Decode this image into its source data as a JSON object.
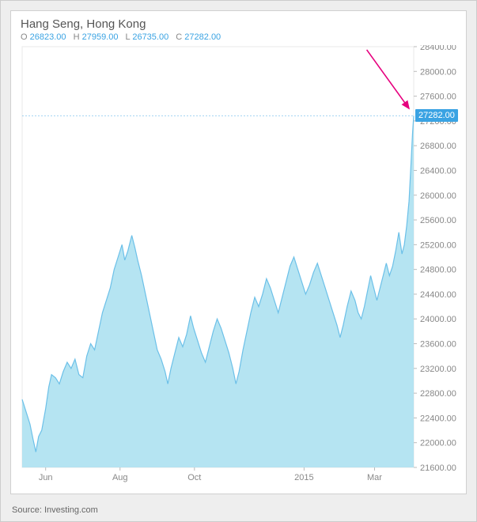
{
  "chart": {
    "type": "area",
    "title": "Hang Seng, Hong Kong",
    "ohlc": {
      "O_label": "O",
      "O_value": "26823.00",
      "O_color": "#3aa3e3",
      "H_label": "H",
      "H_value": "27959.00",
      "H_color": "#3aa3e3",
      "L_label": "L",
      "L_value": "26735.00",
      "L_color": "#3aa3e3",
      "C_label": "C",
      "C_value": "27282.00",
      "C_color": "#3aa3e3"
    },
    "y_axis": {
      "side": "right",
      "min": 21600,
      "max": 28400,
      "tick_step": 400,
      "ticks": [
        21600,
        22000,
        22400,
        22800,
        23200,
        23600,
        24000,
        24400,
        24800,
        25200,
        25600,
        26000,
        26400,
        26800,
        27200,
        27600,
        28000,
        28400
      ],
      "tick_labels": [
        "21600.00",
        "22000.00",
        "22400.00",
        "22800.00",
        "23200.00",
        "23600.00",
        "24000.00",
        "24400.00",
        "24800.00",
        "25200.00",
        "25600.00",
        "26000.00",
        "26400.00",
        "26800.00",
        "27200.00",
        "27600.00",
        "28000.00",
        "28400.00"
      ],
      "label_fontsize": 11,
      "label_color": "#888888"
    },
    "x_axis": {
      "labels": [
        "Jun",
        "Aug",
        "Oct",
        "2015",
        "Mar"
      ],
      "positions": [
        0.06,
        0.25,
        0.44,
        0.72,
        0.9
      ],
      "label_fontsize": 11,
      "label_color": "#888888"
    },
    "current_price": {
      "value": 27282.0,
      "label": "27282.00",
      "flag_bg": "#3aa3e3",
      "flag_text_color": "#ffffff",
      "guideline_color": "#3aa3e3",
      "guideline_dash": "2,2"
    },
    "series": {
      "line_color": "#6cc0e8",
      "line_width": 1.2,
      "fill_color": "#a8dff0",
      "fill_opacity": 0.85,
      "data": [
        [
          0.0,
          22700
        ],
        [
          0.01,
          22500
        ],
        [
          0.02,
          22300
        ],
        [
          0.028,
          22050
        ],
        [
          0.035,
          21850
        ],
        [
          0.042,
          22100
        ],
        [
          0.05,
          22200
        ],
        [
          0.06,
          22550
        ],
        [
          0.068,
          22900
        ],
        [
          0.075,
          23100
        ],
        [
          0.085,
          23050
        ],
        [
          0.095,
          22950
        ],
        [
          0.105,
          23150
        ],
        [
          0.115,
          23300
        ],
        [
          0.125,
          23200
        ],
        [
          0.135,
          23350
        ],
        [
          0.145,
          23100
        ],
        [
          0.155,
          23050
        ],
        [
          0.165,
          23400
        ],
        [
          0.175,
          23600
        ],
        [
          0.185,
          23500
        ],
        [
          0.195,
          23800
        ],
        [
          0.205,
          24100
        ],
        [
          0.215,
          24300
        ],
        [
          0.225,
          24500
        ],
        [
          0.235,
          24800
        ],
        [
          0.245,
          25000
        ],
        [
          0.255,
          25200
        ],
        [
          0.262,
          24950
        ],
        [
          0.27,
          25100
        ],
        [
          0.28,
          25350
        ],
        [
          0.288,
          25150
        ],
        [
          0.295,
          24950
        ],
        [
          0.305,
          24700
        ],
        [
          0.315,
          24400
        ],
        [
          0.325,
          24100
        ],
        [
          0.335,
          23800
        ],
        [
          0.345,
          23500
        ],
        [
          0.355,
          23350
        ],
        [
          0.365,
          23150
        ],
        [
          0.372,
          22950
        ],
        [
          0.38,
          23200
        ],
        [
          0.39,
          23450
        ],
        [
          0.4,
          23700
        ],
        [
          0.41,
          23550
        ],
        [
          0.42,
          23750
        ],
        [
          0.43,
          24050
        ],
        [
          0.438,
          23850
        ],
        [
          0.448,
          23650
        ],
        [
          0.458,
          23450
        ],
        [
          0.468,
          23300
        ],
        [
          0.478,
          23550
        ],
        [
          0.488,
          23800
        ],
        [
          0.498,
          24000
        ],
        [
          0.508,
          23850
        ],
        [
          0.518,
          23650
        ],
        [
          0.528,
          23450
        ],
        [
          0.538,
          23200
        ],
        [
          0.546,
          22950
        ],
        [
          0.554,
          23150
        ],
        [
          0.564,
          23500
        ],
        [
          0.574,
          23800
        ],
        [
          0.584,
          24100
        ],
        [
          0.594,
          24350
        ],
        [
          0.604,
          24200
        ],
        [
          0.614,
          24400
        ],
        [
          0.624,
          24650
        ],
        [
          0.634,
          24500
        ],
        [
          0.644,
          24300
        ],
        [
          0.654,
          24100
        ],
        [
          0.664,
          24350
        ],
        [
          0.674,
          24600
        ],
        [
          0.684,
          24850
        ],
        [
          0.694,
          25000
        ],
        [
          0.704,
          24800
        ],
        [
          0.714,
          24600
        ],
        [
          0.724,
          24400
        ],
        [
          0.734,
          24550
        ],
        [
          0.744,
          24750
        ],
        [
          0.754,
          24900
        ],
        [
          0.764,
          24700
        ],
        [
          0.774,
          24500
        ],
        [
          0.784,
          24300
        ],
        [
          0.794,
          24100
        ],
        [
          0.804,
          23900
        ],
        [
          0.812,
          23700
        ],
        [
          0.82,
          23900
        ],
        [
          0.83,
          24200
        ],
        [
          0.84,
          24450
        ],
        [
          0.85,
          24300
        ],
        [
          0.858,
          24100
        ],
        [
          0.866,
          24000
        ],
        [
          0.874,
          24200
        ],
        [
          0.882,
          24450
        ],
        [
          0.89,
          24700
        ],
        [
          0.898,
          24500
        ],
        [
          0.906,
          24300
        ],
        [
          0.914,
          24500
        ],
        [
          0.922,
          24700
        ],
        [
          0.93,
          24900
        ],
        [
          0.938,
          24700
        ],
        [
          0.946,
          24850
        ],
        [
          0.954,
          25100
        ],
        [
          0.962,
          25400
        ],
        [
          0.97,
          25050
        ],
        [
          0.976,
          25200
        ],
        [
          0.982,
          25500
        ],
        [
          0.988,
          25900
        ],
        [
          0.993,
          26500
        ],
        [
          0.997,
          27000
        ],
        [
          1.0,
          27282
        ]
      ]
    },
    "arrow": {
      "color": "#e6007e",
      "from": [
        0.88,
        28350
      ],
      "to": [
        0.988,
        27400
      ],
      "width": 1.6
    },
    "background_color": "#ffffff",
    "frame_color": "#d0d0d0",
    "outer_bg": "#eeeeee"
  },
  "source": {
    "label": "Source: Investing.com"
  }
}
